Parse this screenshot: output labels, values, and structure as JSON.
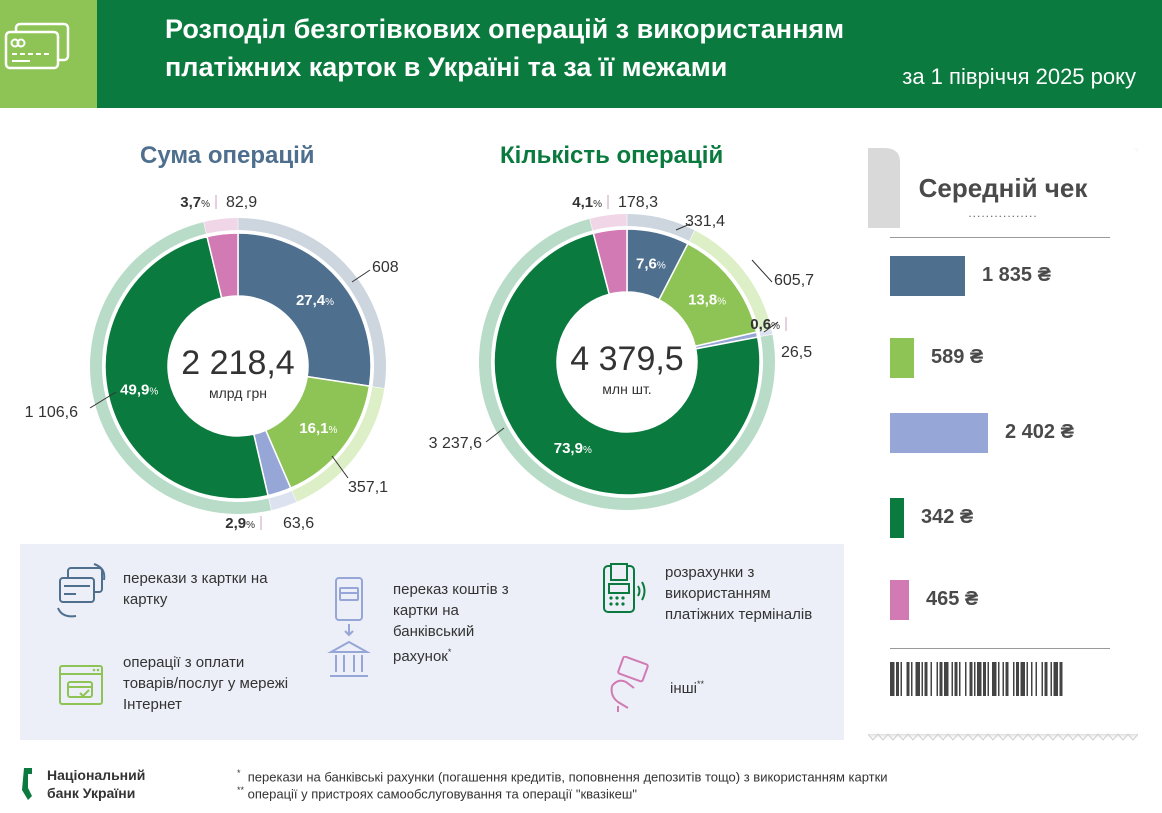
{
  "header": {
    "title_line1": "Розподіл безготівкових операцій з використанням",
    "title_line2": "платіжних карток в Україні та за її межами",
    "period": "за 1 півріччя 2025 року",
    "bg_color": "#0a7a3e",
    "icon_box_color": "#8ec456"
  },
  "colors": {
    "card_to_card": "#4e6f8e",
    "internet": "#8ec456",
    "to_account": "#96a6d6",
    "terminals": "#0a7a3e",
    "other": "#d27ab3",
    "title_sum": "#4e6f8e",
    "title_count": "#0a7a3e"
  },
  "chart_data": [
    {
      "type": "pie",
      "variant": "donut",
      "title": "Сума операцій",
      "center_value": "2 218,4",
      "center_unit": "млрд грн",
      "categories": [
        "перекази з картки на картку",
        "операції з оплати товарів/послуг у мережі Інтернет",
        "переказ коштів з картки на банківський рахунок",
        "розрахунки з використанням платіжних терміналів",
        "інші"
      ],
      "values": [
        608.2,
        357.1,
        63.6,
        1106.6,
        82.9
      ],
      "value_labels": [
        "608,2",
        "357,1",
        "63,6",
        "1 106,6",
        "82,9"
      ],
      "percent_labels": [
        "27,4",
        "16,1",
        "2,9",
        "49,9",
        "3,7"
      ],
      "percent_sign": "%"
    },
    {
      "type": "pie",
      "variant": "donut",
      "title": "Кількість операцій",
      "center_value": "4 379,5",
      "center_unit": "млн шт.",
      "categories": [
        "перекази з картки на картку",
        "операції з оплати товарів/послуг у мережі Інтернет",
        "переказ коштів з картки на банківський рахунок",
        "розрахунки з використанням платіжних терміналів",
        "інші"
      ],
      "values": [
        331.4,
        605.7,
        26.5,
        3237.6,
        178.3
      ],
      "value_labels": [
        "331,4",
        "605,7",
        "26,5",
        "3 237,6",
        "178,3"
      ],
      "percent_labels": [
        "7,6",
        "13,8",
        "0,6",
        "73,9",
        "4,1"
      ],
      "percent_sign": "%"
    },
    {
      "type": "bar",
      "title": "Середній чек",
      "categories": [
        "перекази з картки на картку",
        "операції з оплати товарів/послуг у мережі Інтернет",
        "переказ коштів з картки на банківський рахунок",
        "розрахунки з використанням платіжних терміналів",
        "інші"
      ],
      "values": [
        1835,
        589,
        2402,
        342,
        465
      ],
      "value_labels": [
        "1 835 ₴",
        "589 ₴",
        "2 402 ₴",
        "342 ₴",
        "465 ₴"
      ],
      "unit": "₴"
    }
  ],
  "receipt": {
    "title": "Середній чек",
    "dots": "................"
  },
  "legend": {
    "card_to_card": "перекази з картки на картку",
    "internet": "операції з оплати товарів/послуг у мережі Інтернет",
    "to_account": "переказ коштів з картки на банківський рахунок",
    "to_account_mark": "*",
    "terminals": "розрахунки з використанням платіжних терміналів",
    "other": "інші",
    "other_mark": "**"
  },
  "footer": {
    "logo_line1": "Національний",
    "logo_line2": "банк України",
    "note1_mark": "*",
    "note1": "перекази на банківські рахунки (погашення кредитів, поповнення депозитів тощо) з використанням картки",
    "note2_mark": "**",
    "note2": "операції у пристроях самообслуговування та операції \"квазікеш\""
  }
}
